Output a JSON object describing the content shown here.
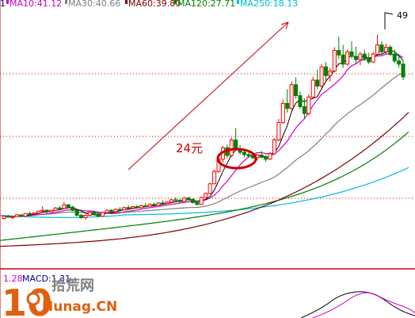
{
  "chart_data": {
    "type": "candlestick",
    "ma_legend": [
      {
        "label": "MA10:41.12",
        "color": "#cc00cc"
      },
      {
        "label": "MA30:40.66",
        "color": "#808080"
      },
      {
        "label": "MA60:39.80",
        "color": "#800000"
      },
      {
        "label": "MA120:27.71",
        "color": "#008000"
      },
      {
        "label": "MA250:18.13",
        "color": "#00bbdd"
      }
    ],
    "legend_prefix": "1",
    "peak_label": "49",
    "annotation": "24元",
    "annotation_price": 24,
    "macd_value": "1.28",
    "macd_label": "MACD:1.31",
    "colors": {
      "up": "#ff0000",
      "down": "#008000",
      "ma5": "#000000",
      "ma10": "#cc00cc",
      "ma30": "#808080",
      "ma60": "#800000",
      "ma120": "#008000",
      "ma250": "#00bbdd",
      "grid": "#cc0000",
      "separator": "#cc0000"
    },
    "candles": [
      [
        8.6,
        9.3,
        8.4,
        9.1
      ],
      [
        9.1,
        9.4,
        8.8,
        8.9
      ],
      [
        8.9,
        9.2,
        8.5,
        9.0
      ],
      [
        9.0,
        9.6,
        8.9,
        9.4
      ],
      [
        9.4,
        9.5,
        8.9,
        9.1
      ],
      [
        9.1,
        9.8,
        9.0,
        9.7
      ],
      [
        9.7,
        10.1,
        9.5,
        9.6
      ],
      [
        9.6,
        9.9,
        9.3,
        9.8
      ],
      [
        9.8,
        10.3,
        9.7,
        10.2
      ],
      [
        10.2,
        11.3,
        10.1,
        10.4
      ],
      [
        10.4,
        10.6,
        9.8,
        10.1
      ],
      [
        10.1,
        10.5,
        9.9,
        10.4
      ],
      [
        10.4,
        11.1,
        10.3,
        10.9
      ],
      [
        10.9,
        11.4,
        10.6,
        10.8
      ],
      [
        10.8,
        12.2,
        10.7,
        11.6
      ],
      [
        11.6,
        11.8,
        10.9,
        11.1
      ],
      [
        11.1,
        11.4,
        10.2,
        10.4
      ],
      [
        10.4,
        10.6,
        9.1,
        9.3
      ],
      [
        9.3,
        9.6,
        8.5,
        8.8
      ],
      [
        8.8,
        9.5,
        8.3,
        9.3
      ],
      [
        9.3,
        10.2,
        9.2,
        10.0
      ],
      [
        10.0,
        10.3,
        9.4,
        9.6
      ],
      [
        9.6,
        9.9,
        8.9,
        9.1
      ],
      [
        9.1,
        10.1,
        9.0,
        9.9
      ],
      [
        9.9,
        10.6,
        9.8,
        10.4
      ],
      [
        10.4,
        10.6,
        9.9,
        10.1
      ],
      [
        10.1,
        10.8,
        10.0,
        10.6
      ],
      [
        10.6,
        11.1,
        10.3,
        10.5
      ],
      [
        10.5,
        11.2,
        10.4,
        11.0
      ],
      [
        11.0,
        11.5,
        10.7,
        10.9
      ],
      [
        10.9,
        11.3,
        10.6,
        11.2
      ],
      [
        11.2,
        11.6,
        10.9,
        11.0
      ],
      [
        11.0,
        11.6,
        10.9,
        11.4
      ],
      [
        11.4,
        12.0,
        11.2,
        11.3
      ],
      [
        11.3,
        11.9,
        11.2,
        11.7
      ],
      [
        11.7,
        12.1,
        11.4,
        11.5
      ],
      [
        11.5,
        12.2,
        11.4,
        12.0
      ],
      [
        12.0,
        12.6,
        11.8,
        11.9
      ],
      [
        11.9,
        12.4,
        11.7,
        12.2
      ],
      [
        12.2,
        12.9,
        12.1,
        12.7
      ],
      [
        12.7,
        13.3,
        12.5,
        12.6
      ],
      [
        12.6,
        12.9,
        12.0,
        12.3
      ],
      [
        12.3,
        13.3,
        12.2,
        13.1
      ],
      [
        13.1,
        13.4,
        12.7,
        12.8
      ],
      [
        12.8,
        13.0,
        11.9,
        12.1
      ],
      [
        12.1,
        12.4,
        11.4,
        11.7
      ],
      [
        11.7,
        13.4,
        11.6,
        13.2
      ],
      [
        13.2,
        14.3,
        13.0,
        14.1
      ],
      [
        14.1,
        16.4,
        13.9,
        16.2
      ],
      [
        16.2,
        19.3,
        16.1,
        18.9
      ],
      [
        18.9,
        21.9,
        18.6,
        21.6
      ],
      [
        21.6,
        24.5,
        20.9,
        24.1
      ],
      [
        24.1,
        24.8,
        21.8,
        22.4
      ],
      [
        22.4,
        26.3,
        22.1,
        25.8
      ],
      [
        25.8,
        28.4,
        23.4,
        23.9
      ],
      [
        23.9,
        24.7,
        22.6,
        23.1
      ],
      [
        23.1,
        23.8,
        22.0,
        22.6
      ],
      [
        22.6,
        23.4,
        21.9,
        22.3
      ],
      [
        22.3,
        23.1,
        21.6,
        21.9
      ],
      [
        21.9,
        22.8,
        21.3,
        22.5
      ],
      [
        22.5,
        23.4,
        21.8,
        22.0
      ],
      [
        22.0,
        22.6,
        21.0,
        21.6
      ],
      [
        21.6,
        23.1,
        21.4,
        22.8
      ],
      [
        22.8,
        26.2,
        22.6,
        25.8
      ],
      [
        25.8,
        30.4,
        25.5,
        29.6
      ],
      [
        29.6,
        34.6,
        29.3,
        33.8
      ],
      [
        33.8,
        36.9,
        31.8,
        32.7
      ],
      [
        32.7,
        38.6,
        32.4,
        37.9
      ],
      [
        37.9,
        39.5,
        34.8,
        35.5
      ],
      [
        35.5,
        36.4,
        32.6,
        33.1
      ],
      [
        33.1,
        34.9,
        30.4,
        31.6
      ],
      [
        31.6,
        35.8,
        31.2,
        35.2
      ],
      [
        35.2,
        39.6,
        34.9,
        38.9
      ],
      [
        38.9,
        41.2,
        36.9,
        37.6
      ],
      [
        37.6,
        42.4,
        37.3,
        41.8
      ],
      [
        41.8,
        42.9,
        38.8,
        39.9
      ],
      [
        39.9,
        41.6,
        38.6,
        40.9
      ],
      [
        40.9,
        46.1,
        40.6,
        45.4
      ],
      [
        45.4,
        48.4,
        43.6,
        44.4
      ],
      [
        44.4,
        46.6,
        41.6,
        42.4
      ],
      [
        42.4,
        45.6,
        42.1,
        45.1
      ],
      [
        45.1,
        47.4,
        43.6,
        44.1
      ],
      [
        44.1,
        46.2,
        42.4,
        43.4
      ],
      [
        43.4,
        45.1,
        42.2,
        44.6
      ],
      [
        44.6,
        45.6,
        43.1,
        43.6
      ],
      [
        43.6,
        44.9,
        42.4,
        42.9
      ],
      [
        42.9,
        45.1,
        42.6,
        44.6
      ],
      [
        44.6,
        48.9,
        44.1,
        46.6
      ],
      [
        46.6,
        47.4,
        44.4,
        45.1
      ],
      [
        45.1,
        46.9,
        44.6,
        46.1
      ],
      [
        46.1,
        46.6,
        44.1,
        44.6
      ],
      [
        44.6,
        45.6,
        42.6,
        43.1
      ],
      [
        43.1,
        44.6,
        41.6,
        42.4
      ],
      [
        42.4,
        43.1,
        38.9,
        39.6
      ]
    ]
  },
  "watermark": {
    "big": "10",
    "cn": "拾荒网",
    "en": "Hunag.CN"
  }
}
